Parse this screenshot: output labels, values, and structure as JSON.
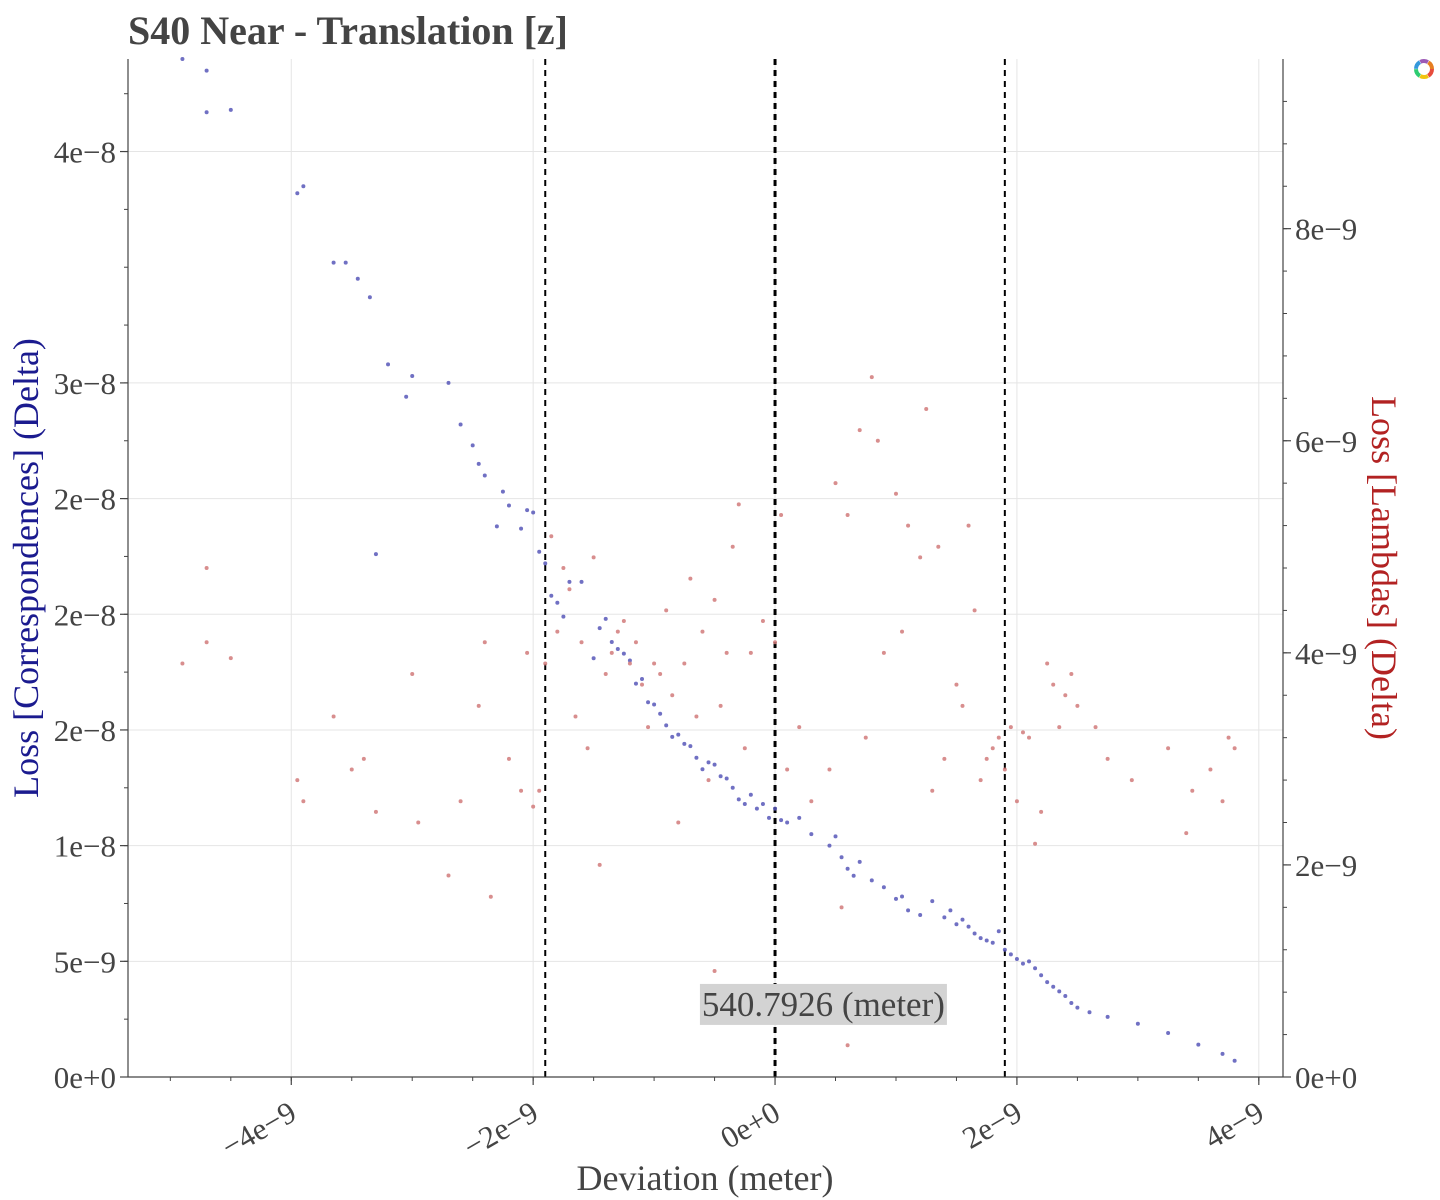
{
  "chart_data": {
    "type": "scatter",
    "title": "S40 Near - Translation [z]",
    "xlabel": "Deviation (meter)",
    "ylabel_left": "Loss [Correspondences] (Delta)",
    "ylabel_right": "Loss [Lambdas] (Delta)",
    "xlim": [
      -5.35e-09,
      4.2e-09
    ],
    "ylim_left": [
      0,
      4.4e-08
    ],
    "ylim_right": [
      0,
      9.6e-09
    ],
    "x_ticks": [
      -4e-09,
      -2e-09,
      0,
      2e-09,
      4e-09
    ],
    "x_tick_labels": [
      "−4e−9",
      "−2e−9",
      "0e+0",
      "2e−9",
      "4e−9"
    ],
    "y_left_ticks": [
      0,
      5e-09,
      1e-08,
      1.5e-08,
      2e-08,
      2.5e-08,
      3e-08,
      4e-08
    ],
    "y_left_tick_labels": [
      "0e+0",
      "5e−9",
      "1e−8",
      "2e−8",
      "2e−8",
      "2e−8",
      "3e−8",
      "4e−8"
    ],
    "y_right_ticks": [
      0,
      2e-09,
      4e-09,
      6e-09,
      8e-09
    ],
    "y_right_tick_labels": [
      "0e+0",
      "2e−9",
      "4e−9",
      "6e−9",
      "8e−9"
    ],
    "grid": true,
    "vlines": [
      {
        "x": -1.9e-09,
        "style": "dashed"
      },
      {
        "x": 0,
        "style": "dashed"
      },
      {
        "x": 1.9e-09,
        "style": "dashed"
      }
    ],
    "annotation": {
      "text": "540.7926 (meter)",
      "x": 4e-10,
      "y_frac": 0.06
    },
    "series": [
      {
        "axis": "left",
        "color": "#5757b8",
        "points": [
          [
            -4.9e-09,
            4.4e-08
          ],
          [
            -4.7e-09,
            4.35e-08
          ],
          [
            -4.7e-09,
            4.17e-08
          ],
          [
            -4.5e-09,
            4.18e-08
          ],
          [
            -3.95e-09,
            3.82e-08
          ],
          [
            -3.9e-09,
            3.85e-08
          ],
          [
            -3.65e-09,
            3.52e-08
          ],
          [
            -3.55e-09,
            3.52e-08
          ],
          [
            -3.45e-09,
            3.45e-08
          ],
          [
            -3.35e-09,
            3.37e-08
          ],
          [
            -3.3e-09,
            2.26e-08
          ],
          [
            -3.2e-09,
            3.08e-08
          ],
          [
            -3.05e-09,
            2.94e-08
          ],
          [
            -3e-09,
            3.03e-08
          ],
          [
            -2.7e-09,
            3e-08
          ],
          [
            -2.6e-09,
            2.82e-08
          ],
          [
            -2.5e-09,
            2.73e-08
          ],
          [
            -2.45e-09,
            2.65e-08
          ],
          [
            -2.4e-09,
            2.6e-08
          ],
          [
            -2.3e-09,
            2.38e-08
          ],
          [
            -2.25e-09,
            2.53e-08
          ],
          [
            -2.2e-09,
            2.47e-08
          ],
          [
            -2.1e-09,
            2.37e-08
          ],
          [
            -2.05e-09,
            2.45e-08
          ],
          [
            -2e-09,
            2.44e-08
          ],
          [
            -1.95e-09,
            2.27e-08
          ],
          [
            -1.9e-09,
            2.22e-08
          ],
          [
            -1.85e-09,
            2.08e-08
          ],
          [
            -1.8e-09,
            2.05e-08
          ],
          [
            -1.75e-09,
            1.99e-08
          ],
          [
            -1.7e-09,
            2.14e-08
          ],
          [
            -1.6e-09,
            2.14e-08
          ],
          [
            -1.5e-09,
            1.81e-08
          ],
          [
            -1.45e-09,
            1.94e-08
          ],
          [
            -1.4e-09,
            1.98e-08
          ],
          [
            -1.35e-09,
            1.88e-08
          ],
          [
            -1.3e-09,
            1.85e-08
          ],
          [
            -1.25e-09,
            1.83e-08
          ],
          [
            -1.2e-09,
            1.8e-08
          ],
          [
            -1.15e-09,
            1.7e-08
          ],
          [
            -1.1e-09,
            1.72e-08
          ],
          [
            -1.05e-09,
            1.62e-08
          ],
          [
            -1e-09,
            1.61e-08
          ],
          [
            -9.5e-10,
            1.57e-08
          ],
          [
            -9e-10,
            1.52e-08
          ],
          [
            -8.5e-10,
            1.47e-08
          ],
          [
            -8e-10,
            1.48e-08
          ],
          [
            -7.5e-10,
            1.44e-08
          ],
          [
            -7e-10,
            1.43e-08
          ],
          [
            -6.5e-10,
            1.38e-08
          ],
          [
            -6e-10,
            1.33e-08
          ],
          [
            -5.5e-10,
            1.36e-08
          ],
          [
            -5e-10,
            1.35e-08
          ],
          [
            -4.5e-10,
            1.3e-08
          ],
          [
            -4e-10,
            1.29e-08
          ],
          [
            -3.5e-10,
            1.25e-08
          ],
          [
            -3e-10,
            1.2e-08
          ],
          [
            -2.5e-10,
            1.18e-08
          ],
          [
            -2e-10,
            1.22e-08
          ],
          [
            -1.5e-10,
            1.16e-08
          ],
          [
            -1e-10,
            1.18e-08
          ],
          [
            -5e-11,
            1.12e-08
          ],
          [
            0.0,
            1.16e-08
          ],
          [
            5e-11,
            1.11e-08
          ],
          [
            1e-10,
            1.1e-08
          ],
          [
            2e-10,
            1.12e-08
          ],
          [
            3e-10,
            1.05e-08
          ],
          [
            4.5e-10,
            1e-08
          ],
          [
            5e-10,
            1.04e-08
          ],
          [
            5.5e-10,
            9.5e-09
          ],
          [
            6e-10,
            9e-09
          ],
          [
            6.5e-10,
            8.7e-09
          ],
          [
            7e-10,
            9.3e-09
          ],
          [
            8e-10,
            8.5e-09
          ],
          [
            9e-10,
            8.2e-09
          ],
          [
            1e-09,
            7.7e-09
          ],
          [
            1.05e-09,
            7.8e-09
          ],
          [
            1.1e-09,
            7.2e-09
          ],
          [
            1.2e-09,
            7e-09
          ],
          [
            1.3e-09,
            7.6e-09
          ],
          [
            1.4e-09,
            6.9e-09
          ],
          [
            1.45e-09,
            7.2e-09
          ],
          [
            1.5e-09,
            6.6e-09
          ],
          [
            1.55e-09,
            6.8e-09
          ],
          [
            1.6e-09,
            6.5e-09
          ],
          [
            1.65e-09,
            6.2e-09
          ],
          [
            1.7e-09,
            6e-09
          ],
          [
            1.75e-09,
            5.9e-09
          ],
          [
            1.8e-09,
            5.8e-09
          ],
          [
            1.85e-09,
            6.3e-09
          ],
          [
            1.9e-09,
            5.5e-09
          ],
          [
            1.95e-09,
            5.3e-09
          ],
          [
            2e-09,
            5.1e-09
          ],
          [
            2.05e-09,
            4.9e-09
          ],
          [
            2.1e-09,
            5e-09
          ],
          [
            2.15e-09,
            4.7e-09
          ],
          [
            2.2e-09,
            4.4e-09
          ],
          [
            2.25e-09,
            4.1e-09
          ],
          [
            2.3e-09,
            3.9e-09
          ],
          [
            2.35e-09,
            3.7e-09
          ],
          [
            2.4e-09,
            3.5e-09
          ],
          [
            2.45e-09,
            3.2e-09
          ],
          [
            2.5e-09,
            3e-09
          ],
          [
            2.6e-09,
            2.8e-09
          ],
          [
            2.75e-09,
            2.6e-09
          ],
          [
            3e-09,
            2.3e-09
          ],
          [
            3.25e-09,
            1.9e-09
          ],
          [
            3.5e-09,
            1.4e-09
          ],
          [
            3.7e-09,
            1e-09
          ],
          [
            3.8e-09,
            7e-10
          ]
        ]
      },
      {
        "axis": "right",
        "color": "#d17a7a",
        "points": [
          [
            -4.9e-09,
            3.9e-09
          ],
          [
            -4.7e-09,
            4.1e-09
          ],
          [
            -4.7e-09,
            4.8e-09
          ],
          [
            -4.5e-09,
            3.95e-09
          ],
          [
            -3.95e-09,
            2.8e-09
          ],
          [
            -3.9e-09,
            2.6e-09
          ],
          [
            -3.65e-09,
            3.4e-09
          ],
          [
            -3.5e-09,
            2.9e-09
          ],
          [
            -3.4e-09,
            3e-09
          ],
          [
            -3.3e-09,
            2.5e-09
          ],
          [
            -3e-09,
            3.8e-09
          ],
          [
            -2.95e-09,
            2.4e-09
          ],
          [
            -2.7e-09,
            1.9e-09
          ],
          [
            -2.6e-09,
            2.6e-09
          ],
          [
            -2.45e-09,
            3.5e-09
          ],
          [
            -2.4e-09,
            4.1e-09
          ],
          [
            -2.35e-09,
            1.7e-09
          ],
          [
            -2.2e-09,
            3e-09
          ],
          [
            -2.1e-09,
            2.7e-09
          ],
          [
            -2.05e-09,
            4e-09
          ],
          [
            -2e-09,
            2.55e-09
          ],
          [
            -1.95e-09,
            2.7e-09
          ],
          [
            -1.9e-09,
            3.9e-09
          ],
          [
            -1.85e-09,
            5.1e-09
          ],
          [
            -1.8e-09,
            4.2e-09
          ],
          [
            -1.75e-09,
            4.8e-09
          ],
          [
            -1.7e-09,
            4.6e-09
          ],
          [
            -1.65e-09,
            3.4e-09
          ],
          [
            -1.6e-09,
            4.1e-09
          ],
          [
            -1.55e-09,
            3.1e-09
          ],
          [
            -1.5e-09,
            4.9e-09
          ],
          [
            -1.45e-09,
            2e-09
          ],
          [
            -1.4e-09,
            3.8e-09
          ],
          [
            -1.35e-09,
            4e-09
          ],
          [
            -1.3e-09,
            4.2e-09
          ],
          [
            -1.25e-09,
            4.3e-09
          ],
          [
            -1.2e-09,
            3.9e-09
          ],
          [
            -1.15e-09,
            4.1e-09
          ],
          [
            -1.1e-09,
            3.7e-09
          ],
          [
            -1.05e-09,
            3.3e-09
          ],
          [
            -1e-09,
            3.9e-09
          ],
          [
            -9.5e-10,
            3.8e-09
          ],
          [
            -9e-10,
            4.4e-09
          ],
          [
            -8.5e-10,
            3.6e-09
          ],
          [
            -8e-10,
            2.4e-09
          ],
          [
            -7.5e-10,
            3.9e-09
          ],
          [
            -7e-10,
            4.7e-09
          ],
          [
            -6.5e-10,
            3.4e-09
          ],
          [
            -6e-10,
            4.2e-09
          ],
          [
            -5.5e-10,
            2.8e-09
          ],
          [
            -5e-10,
            4.5e-09
          ],
          [
            -4.5e-10,
            3.5e-09
          ],
          [
            -4e-10,
            4e-09
          ],
          [
            -3.5e-10,
            5e-09
          ],
          [
            -3e-10,
            5.4e-09
          ],
          [
            -2.5e-10,
            3.1e-09
          ],
          [
            -2e-10,
            4e-09
          ],
          [
            -1e-10,
            4.3e-09
          ],
          [
            0.0,
            4.1e-09
          ],
          [
            5e-11,
            5.3e-09
          ],
          [
            1e-10,
            2.9e-09
          ],
          [
            2e-10,
            3.3e-09
          ],
          [
            3e-10,
            2.6e-09
          ],
          [
            4.5e-10,
            2.9e-09
          ],
          [
            5e-10,
            5.6e-09
          ],
          [
            5.5e-10,
            1.6e-09
          ],
          [
            6e-10,
            5.3e-09
          ],
          [
            7e-10,
            6.1e-09
          ],
          [
            7.5e-10,
            3.2e-09
          ],
          [
            8e-10,
            6.6e-09
          ],
          [
            8.5e-10,
            6e-09
          ],
          [
            9e-10,
            4e-09
          ],
          [
            1e-09,
            5.5e-09
          ],
          [
            1.05e-09,
            4.2e-09
          ],
          [
            1.1e-09,
            5.2e-09
          ],
          [
            1.2e-09,
            4.9e-09
          ],
          [
            1.25e-09,
            6.3e-09
          ],
          [
            1.3e-09,
            2.7e-09
          ],
          [
            1.35e-09,
            5e-09
          ],
          [
            1.4e-09,
            3e-09
          ],
          [
            1.5e-09,
            3.7e-09
          ],
          [
            1.55e-09,
            3.5e-09
          ],
          [
            1.6e-09,
            5.2e-09
          ],
          [
            1.65e-09,
            4.4e-09
          ],
          [
            1.7e-09,
            2.8e-09
          ],
          [
            1.75e-09,
            3e-09
          ],
          [
            1.8e-09,
            3.1e-09
          ],
          [
            1.85e-09,
            3.2e-09
          ],
          [
            1.9e-09,
            2.9e-09
          ],
          [
            1.95e-09,
            3.3e-09
          ],
          [
            2e-09,
            2.6e-09
          ],
          [
            2.05e-09,
            3.25e-09
          ],
          [
            2.1e-09,
            3.2e-09
          ],
          [
            2.15e-09,
            2.2e-09
          ],
          [
            2.2e-09,
            2.5e-09
          ],
          [
            2.25e-09,
            3.9e-09
          ],
          [
            2.3e-09,
            3.7e-09
          ],
          [
            2.35e-09,
            3.3e-09
          ],
          [
            2.4e-09,
            3.6e-09
          ],
          [
            2.45e-09,
            3.8e-09
          ],
          [
            2.5e-09,
            3.5e-09
          ],
          [
            2.65e-09,
            3.3e-09
          ],
          [
            2.75e-09,
            3e-09
          ],
          [
            2.95e-09,
            2.8e-09
          ],
          [
            3.25e-09,
            3.1e-09
          ],
          [
            3.45e-09,
            2.7e-09
          ],
          [
            3.6e-09,
            2.9e-09
          ],
          [
            3.75e-09,
            3.2e-09
          ],
          [
            3.8e-09,
            3.1e-09
          ],
          [
            3.7e-09,
            2.6e-09
          ],
          [
            3.4e-09,
            2.3e-09
          ],
          [
            -5e-10,
            1e-09
          ],
          [
            6e-10,
            3e-10
          ]
        ]
      }
    ]
  }
}
